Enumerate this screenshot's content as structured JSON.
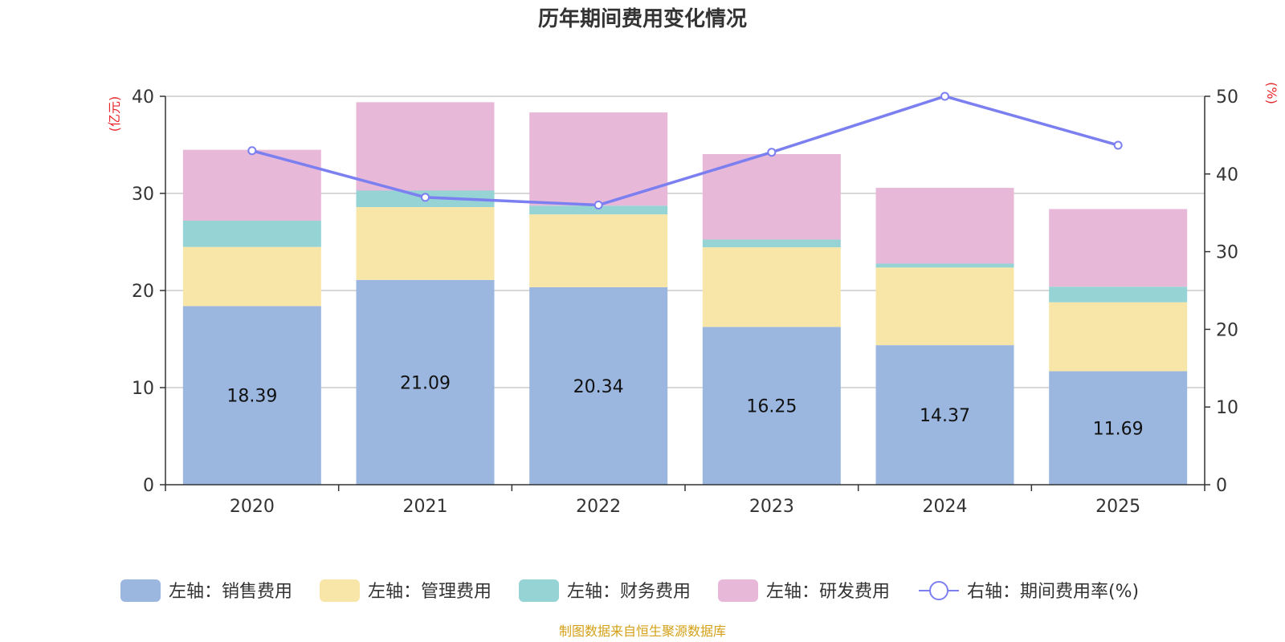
{
  "chart_data": {
    "type": "bar",
    "stacked": true,
    "title": "历年期间费用变化情况",
    "categories": [
      "2020",
      "2021",
      "2022",
      "2023",
      "2024",
      "2025"
    ],
    "left_axis": {
      "unit": "(亿元)",
      "ylim": [
        0,
        40
      ],
      "ticks": [
        0,
        10,
        20,
        30,
        40
      ],
      "color": "#e8262a"
    },
    "right_axis": {
      "unit": "(%)",
      "ylim": [
        0,
        50
      ],
      "ticks": [
        0,
        10,
        20,
        30,
        40,
        50
      ],
      "color": "#e8262a"
    },
    "series": [
      {
        "name": "左轴：销售费用",
        "axis": "left",
        "color": "#9bb7e0",
        "values": [
          18.39,
          21.09,
          20.34,
          16.25,
          14.37,
          11.69
        ],
        "labels": [
          "18.39",
          "21.09",
          "20.34",
          "16.25",
          "14.37",
          "11.69"
        ]
      },
      {
        "name": "左轴：管理费用",
        "axis": "left",
        "color": "#f8e6a8",
        "values": [
          6.1,
          7.5,
          7.5,
          8.2,
          8.0,
          7.1
        ]
      },
      {
        "name": "左轴：财务费用",
        "axis": "left",
        "color": "#95d3d4",
        "values": [
          2.7,
          1.7,
          0.9,
          0.8,
          0.4,
          1.6
        ]
      },
      {
        "name": "左轴：研发费用",
        "axis": "left",
        "color": "#e8b8d9",
        "values": [
          7.3,
          9.1,
          9.6,
          8.8,
          7.8,
          8.0
        ]
      }
    ],
    "line_series": {
      "name": "右轴：期间费用率(%)",
      "axis": "right",
      "color": "#7b7ff0",
      "values": [
        43.0,
        37.0,
        36.0,
        42.8,
        50.0,
        43.7
      ]
    },
    "grid": true,
    "legend_position": "bottom"
  },
  "source_text": "制图数据来自恒生聚源数据库",
  "source_color": "#d4a017"
}
